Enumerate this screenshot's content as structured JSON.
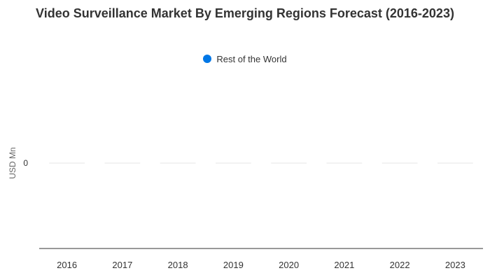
{
  "chart_data": {
    "type": "bar",
    "title": "Video Surveillance Market By Emerging Regions Forecast (2016-2023)",
    "xlabel": "",
    "ylabel": "USD Mn",
    "categories": [
      "2016",
      "2017",
      "2018",
      "2019",
      "2020",
      "2021",
      "2022",
      "2023"
    ],
    "series": [
      {
        "name": "Rest of the World",
        "color": "#0077e6",
        "values": [
          0,
          0,
          0,
          0,
          0,
          0,
          0,
          0
        ]
      }
    ],
    "y_ticks": [
      "0"
    ],
    "ylim": [
      -1,
      1
    ],
    "grid": true,
    "legend_position": "top-center"
  }
}
